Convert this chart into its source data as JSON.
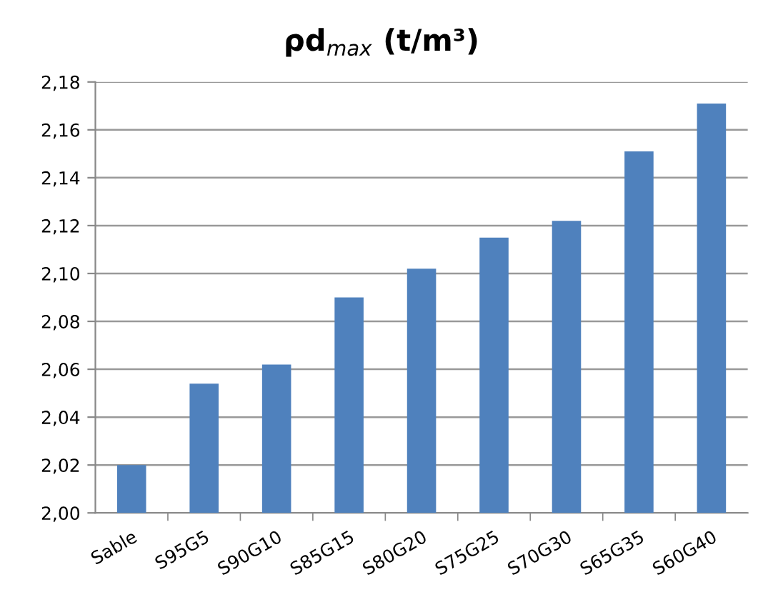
{
  "chart_data": {
    "type": "bar",
    "title": "ρd$_{max}$ (t/m³)",
    "categories": [
      "Sable",
      "S95G5",
      "S90G10",
      "S85G15",
      "S80G20",
      "S75G25",
      "S70G30",
      "S65G35",
      "S60G40"
    ],
    "values": [
      2.02,
      2.054,
      2.062,
      2.09,
      2.102,
      2.115,
      2.122,
      2.151,
      2.171
    ],
    "color": "#4f81bd",
    "ylim": [
      2.0,
      2.18
    ],
    "yticks": [
      {
        "value": 2.0,
        "label": "2,00"
      },
      {
        "value": 2.02,
        "label": "2,02"
      },
      {
        "value": 2.04,
        "label": "2,04"
      },
      {
        "value": 2.06,
        "label": "2,06"
      },
      {
        "value": 2.08,
        "label": "2,08"
      },
      {
        "value": 2.1,
        "label": "2,10"
      },
      {
        "value": 2.12,
        "label": "2,12"
      },
      {
        "value": 2.14,
        "label": "2,14"
      },
      {
        "value": 2.16,
        "label": "2,16"
      },
      {
        "value": 2.18,
        "label": "2,18"
      }
    ],
    "grid": "y",
    "legend": false
  }
}
